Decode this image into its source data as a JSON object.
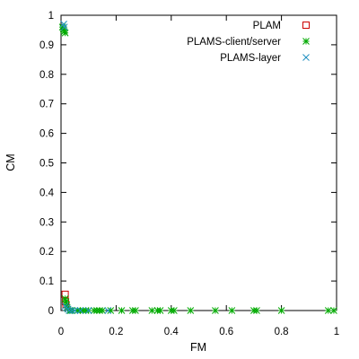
{
  "chart_data": {
    "type": "scatter",
    "xlabel": "FM",
    "ylabel": "CM",
    "xlim": [
      0,
      1
    ],
    "ylim": [
      0,
      1
    ],
    "xticks": [
      0,
      0.2,
      0.4,
      0.6,
      0.8,
      1
    ],
    "xtick_labels": [
      "0",
      "0.2",
      "0.4",
      "0.6",
      "0.8",
      "1"
    ],
    "yticks": [
      0,
      0.1,
      0.2,
      0.3,
      0.4,
      0.5,
      0.6,
      0.7,
      0.8,
      0.9,
      1
    ],
    "ytick_labels": [
      "0",
      "0.1",
      "0.2",
      "0.3",
      "0.4",
      "0.5",
      "0.6",
      "0.7",
      "0.8",
      "0.9",
      "1"
    ],
    "grid": false,
    "legend_position": "top-right",
    "series": [
      {
        "name": "PLAM",
        "marker": "open-square",
        "color": "#cc0000",
        "points": [
          [
            0.015,
            0.055
          ],
          [
            0.018,
            0.02
          ],
          [
            0.016,
            0.03
          ]
        ]
      },
      {
        "name": "PLAMS-client/server",
        "marker": "asterisk",
        "color": "#00aa00",
        "points": [
          [
            0.005,
            0.96
          ],
          [
            0.008,
            0.955
          ],
          [
            0.01,
            0.95
          ],
          [
            0.012,
            0.945
          ],
          [
            0.015,
            0.94
          ],
          [
            0.015,
            0.04
          ],
          [
            0.018,
            0.03
          ],
          [
            0.02,
            0.02
          ],
          [
            0.022,
            0.01
          ],
          [
            0.025,
            0.005
          ],
          [
            0.03,
            0.0
          ],
          [
            0.035,
            0.0
          ],
          [
            0.04,
            0.0
          ],
          [
            0.06,
            0.0
          ],
          [
            0.07,
            0.0
          ],
          [
            0.08,
            0.0
          ],
          [
            0.09,
            0.0
          ],
          [
            0.1,
            0.0
          ],
          [
            0.12,
            0.0
          ],
          [
            0.13,
            0.0
          ],
          [
            0.14,
            0.0
          ],
          [
            0.15,
            0.0
          ],
          [
            0.18,
            0.0
          ],
          [
            0.22,
            0.0
          ],
          [
            0.26,
            0.0
          ],
          [
            0.27,
            0.0
          ],
          [
            0.33,
            0.0
          ],
          [
            0.35,
            0.0
          ],
          [
            0.36,
            0.0
          ],
          [
            0.4,
            0.0
          ],
          [
            0.41,
            0.0
          ],
          [
            0.47,
            0.0
          ],
          [
            0.56,
            0.0
          ],
          [
            0.62,
            0.0
          ],
          [
            0.7,
            0.0
          ],
          [
            0.71,
            0.0
          ],
          [
            0.8,
            0.0
          ],
          [
            0.97,
            0.0
          ],
          [
            0.99,
            0.0
          ]
        ]
      },
      {
        "name": "PLAMS-layer",
        "marker": "x",
        "color": "#1f8fc0",
        "points": [
          [
            0.01,
            0.97
          ],
          [
            0.012,
            0.96
          ],
          [
            0.015,
            0.015
          ],
          [
            0.02,
            0.01
          ],
          [
            0.025,
            0.005
          ],
          [
            0.03,
            0.0
          ],
          [
            0.04,
            0.0
          ],
          [
            0.05,
            0.0
          ],
          [
            0.07,
            0.0
          ],
          [
            0.1,
            0.0
          ],
          [
            0.17,
            0.0
          ]
        ]
      }
    ]
  }
}
